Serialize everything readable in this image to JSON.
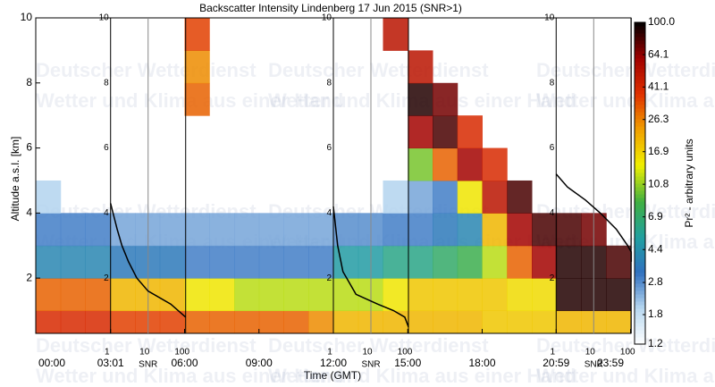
{
  "chart_data": {
    "type": "heatmap",
    "title": "Backscatter Intensity Lindenberg 17 Jun 2015 (SNR>1)",
    "xlabel": "Time (GMT)",
    "ylabel": "Altitude a.s.l. [km]",
    "colorbar_label": "Pr² - arbitrary units",
    "watermark": [
      "Deutscher Wetterdienst",
      "Wetter und Klima aus einer Hand"
    ],
    "xlim": [
      0,
      24
    ],
    "xticks": [
      {
        "value": 0,
        "label": "00:00"
      },
      {
        "value": 3.017,
        "label": "03:01"
      },
      {
        "value": 6,
        "label": "06:00"
      },
      {
        "value": 9,
        "label": "09:00"
      },
      {
        "value": 12,
        "label": "12:00"
      },
      {
        "value": 15,
        "label": "15:00"
      },
      {
        "value": 18,
        "label": "18:00"
      },
      {
        "value": 20.983,
        "label": "20:59"
      },
      {
        "value": 23.983,
        "label": "23:59"
      }
    ],
    "ylim": [
      0.3,
      10
    ],
    "yticks": [
      2,
      4,
      6,
      8,
      10
    ],
    "x_edges": [
      0,
      1,
      2,
      3,
      4,
      5,
      6,
      7,
      8,
      9,
      10,
      11,
      12,
      13,
      14,
      15,
      16,
      17,
      18,
      19,
      20,
      21,
      22,
      23,
      24
    ],
    "y_edges": [
      0.3,
      1,
      2,
      3,
      4,
      5,
      6,
      7,
      8,
      9,
      10
    ],
    "z": [
      [
        40,
        40,
        40,
        35,
        35,
        35,
        30,
        30,
        30,
        30,
        30,
        25,
        20,
        20,
        20,
        20,
        20,
        20,
        18,
        18,
        18,
        20,
        20,
        20
      ],
      [
        30,
        30,
        30,
        20,
        20,
        20,
        15,
        15,
        12,
        12,
        12,
        12,
        12,
        12,
        15,
        18,
        18,
        18,
        18,
        16,
        16,
        90,
        90,
        90
      ],
      [
        4,
        4,
        4,
        3.5,
        3.5,
        3.5,
        3,
        3,
        3,
        3,
        3,
        3,
        5,
        5,
        6,
        6,
        7,
        8,
        12,
        30,
        60,
        90,
        90,
        80
      ],
      [
        3,
        3,
        3,
        2.5,
        2.5,
        2.5,
        2.5,
        2.5,
        2.5,
        2.5,
        2.5,
        2.5,
        2.8,
        2.8,
        3,
        3,
        3.5,
        4,
        20,
        60,
        80,
        80,
        70,
        null
      ],
      [
        2,
        null,
        null,
        null,
        null,
        null,
        null,
        null,
        null,
        null,
        null,
        null,
        null,
        null,
        2,
        2.5,
        3,
        15,
        50,
        80,
        null,
        null,
        null,
        null
      ],
      [
        null,
        null,
        null,
        null,
        null,
        null,
        null,
        null,
        null,
        null,
        null,
        null,
        null,
        null,
        null,
        10,
        30,
        60,
        40,
        null,
        null,
        null,
        null,
        null
      ],
      [
        null,
        null,
        null,
        null,
        null,
        null,
        null,
        null,
        null,
        null,
        null,
        null,
        null,
        null,
        null,
        60,
        80,
        40,
        null,
        null,
        null,
        null,
        null,
        null
      ],
      [
        null,
        null,
        null,
        null,
        null,
        null,
        30,
        null,
        null,
        null,
        null,
        null,
        null,
        null,
        null,
        90,
        70,
        null,
        null,
        null,
        null,
        null,
        null,
        null
      ],
      [
        null,
        null,
        null,
        null,
        null,
        null,
        25,
        null,
        null,
        null,
        null,
        null,
        null,
        null,
        null,
        50,
        null,
        null,
        null,
        null,
        null,
        null,
        null,
        null
      ],
      [
        null,
        null,
        null,
        null,
        null,
        null,
        35,
        null,
        null,
        null,
        null,
        null,
        null,
        null,
        50,
        null,
        null,
        null,
        null,
        null,
        null,
        null,
        null,
        null
      ]
    ],
    "colormap": [
      "#ffffff",
      "#b8d8f0",
      "#3070c0",
      "#20a0a0",
      "#40b040",
      "#f0f000",
      "#f0a000",
      "#e03000",
      "#a00000",
      "#000000"
    ],
    "clim": [
      1.2,
      100
    ],
    "cticks": [
      {
        "value": 1.2,
        "label": "1.2"
      },
      {
        "value": 1.8,
        "label": "1.8"
      },
      {
        "value": 2.8,
        "label": "2.8"
      },
      {
        "value": 4.4,
        "label": "4.4"
      },
      {
        "value": 6.9,
        "label": "6.9"
      },
      {
        "value": 10.8,
        "label": "10.8"
      },
      {
        "value": 16.9,
        "label": "16.9"
      },
      {
        "value": 26.3,
        "label": "26.3"
      },
      {
        "value": 41.1,
        "label": "41.1"
      },
      {
        "value": 64.1,
        "label": "64.1"
      },
      {
        "value": 100,
        "label": "100.0"
      }
    ],
    "snr_label": "SNR",
    "snr_ticks": [
      1,
      10,
      100
    ],
    "profiles": [
      {
        "color": "#000000",
        "altitude": [
          4.3,
          3.5,
          3,
          2.5,
          2,
          1.6,
          1.2,
          0.8
        ],
        "snr": [
          1,
          1.5,
          2,
          3,
          5,
          10,
          40,
          100
        ]
      },
      {
        "color": "#000000",
        "altitude": [
          4.2,
          3,
          2.2,
          1.5,
          1.2,
          1,
          0.8,
          0.5
        ],
        "snr": [
          1,
          1.3,
          1.8,
          4,
          15,
          40,
          80,
          100
        ]
      },
      {
        "color": "#000000",
        "altitude": [
          5.2,
          4.8,
          4.4,
          4,
          3.5,
          3,
          2.8,
          2.5
        ],
        "snr": [
          1,
          2,
          6,
          15,
          40,
          80,
          100,
          100
        ]
      }
    ]
  }
}
